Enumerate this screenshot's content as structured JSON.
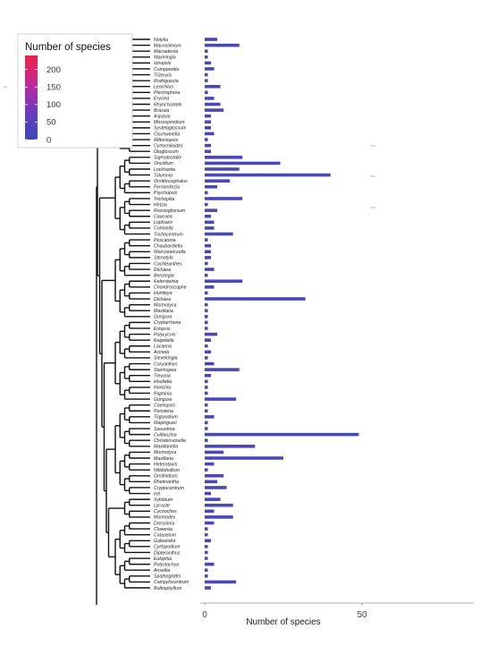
{
  "chart_data": {
    "type": "bar",
    "orientation": "horizontal",
    "xlabel": "Number of species",
    "xlim": [
      0,
      85
    ],
    "xticks": [
      0,
      50
    ],
    "grid": false,
    "bar_color": "#4a47b6",
    "legend": {
      "title": "Number of species",
      "placement": "top-left",
      "ticks": [
        0,
        50,
        100,
        150,
        200
      ],
      "range": [
        0,
        240
      ],
      "colors": [
        "#3a48b8",
        "#6a3cc0",
        "#c02a9a",
        "#ee2244"
      ]
    },
    "categories": [
      "Notylia",
      "Macroclinium",
      "Macradenia",
      "Warmingia",
      "Ionopsis",
      "Comparettia",
      "Trizeuxis",
      "Rodriguezia",
      "Leochilus",
      "Plectrophora",
      "Erycina",
      "Rhynchostele",
      "Brassia",
      "Aspasia",
      "Mesospinidium",
      "Systeloglossum",
      "Cischweinfia",
      "Miltoniopsis",
      "Cyrtochiloides",
      "Otoglossum",
      "Sigmatostalix",
      "Oncidium",
      "Lockhartia",
      "Tolumnia",
      "Ornithocephalus",
      "Fernandezia",
      "Psychopsis",
      "Trichopilia",
      "Hirtzia",
      "Rossioglossum",
      "Caucaea",
      "Lophiaris",
      "Cohniella",
      "Trichocentrum",
      "Pescatoria",
      "Chaubardiella",
      "Warczewiczella",
      "Stenotyla",
      "Cochleanthes",
      "Dichaea",
      "Benzingia",
      "Kefersteinia",
      "Chondroscaphe",
      "Huntleya",
      "Dichaea",
      "Mormolyca",
      "Maxillaria",
      "Gongora",
      "Cryptarrhena",
      "Eriopsis",
      "Polycycnis",
      "Kegeliella",
      "Lacaena",
      "Acineta",
      "Sievekingia",
      "Coryanthes",
      "Stanhopea",
      "Trevoria",
      "Houlletia",
      "Horichia",
      "Paphinia",
      "Gongora",
      "Coeliopsis",
      "Peristeria",
      "Trigonidium",
      "Mapinguari",
      "Sauvetrea",
      "Cuitlauzina",
      "Christensonella",
      "Maxillariella",
      "Mormolyca",
      "Maxillaria",
      "Heterotaxis",
      "Nitidobulbon",
      "Ornithidium",
      "Rhetinantha",
      "Cryptocentrum",
      "Inti",
      "Xylobium",
      "Lycaste",
      "Cycnoches",
      "Mormodes",
      "Dressleria",
      "Clowesia",
      "Catasetum",
      "Galeandra",
      "Cyrtopodium",
      "Dipteranthus",
      "Eulophia",
      "Polystachya",
      "Ansellia",
      "Spathoglottis",
      "Campylocentrum",
      "Bulbophyllum"
    ],
    "values": [
      4,
      11,
      1,
      1,
      2,
      3,
      1,
      1,
      5,
      1,
      3,
      5,
      6,
      2,
      2,
      2,
      3,
      1,
      2,
      2,
      12,
      24,
      11,
      40,
      8,
      4,
      1,
      12,
      1,
      4,
      2,
      3,
      3,
      9,
      1,
      2,
      2,
      2,
      1,
      3,
      1,
      12,
      3,
      1,
      32,
      1,
      1,
      1,
      1,
      1,
      4,
      2,
      1,
      2,
      1,
      3,
      11,
      2,
      1,
      1,
      1,
      10,
      1,
      1,
      3,
      1,
      1,
      49,
      1,
      16,
      6,
      25,
      3,
      1,
      6,
      4,
      7,
      2,
      5,
      9,
      3,
      9,
      3,
      1,
      1,
      2,
      1,
      1,
      1,
      3,
      1,
      1,
      10,
      2
    ]
  }
}
